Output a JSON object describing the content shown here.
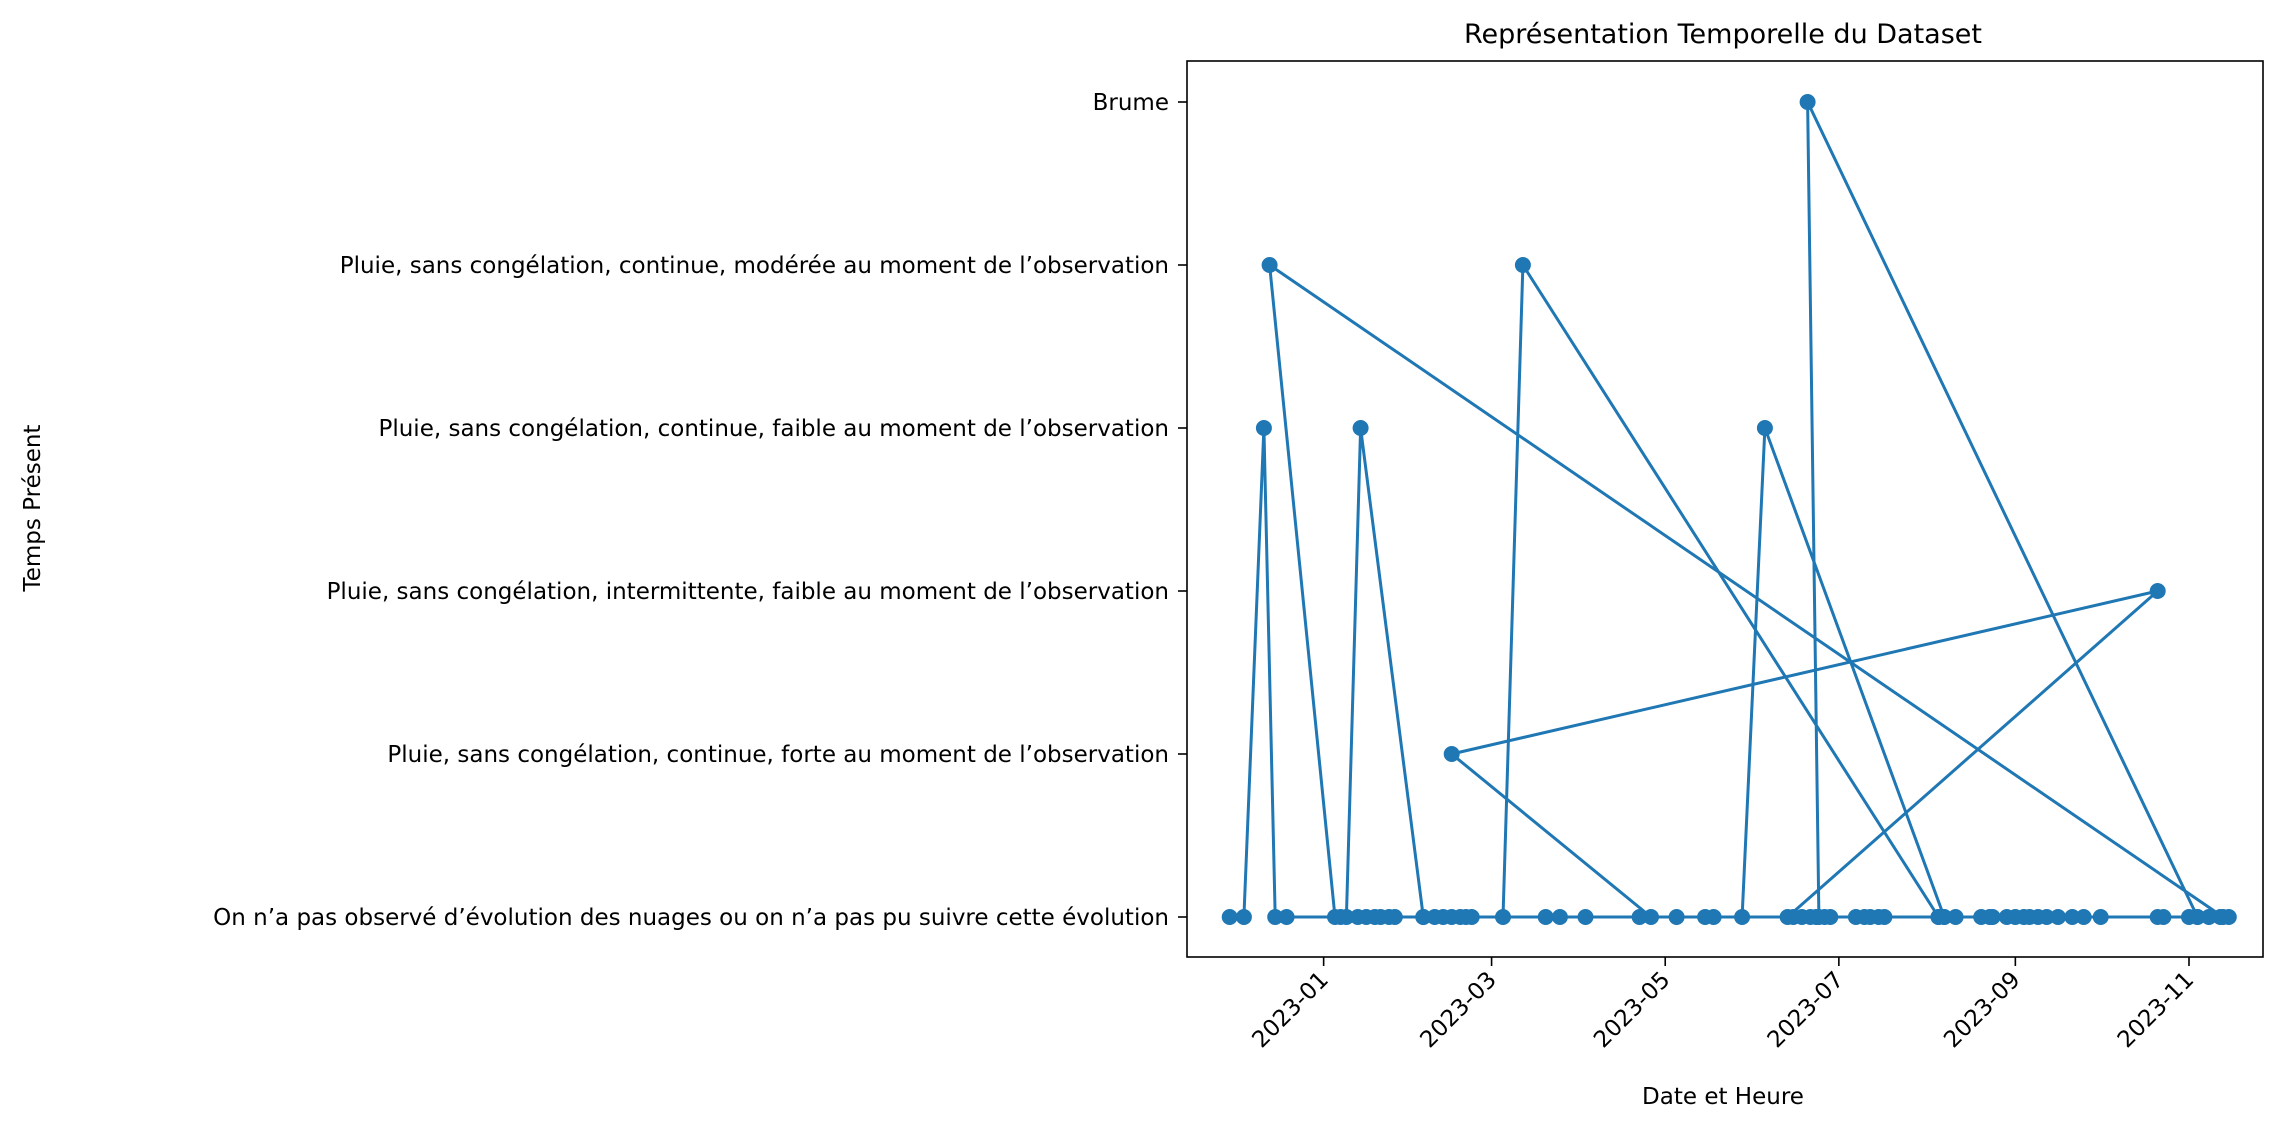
{
  "chart_data": {
    "type": "line",
    "title": "Représentation Temporelle du Dataset",
    "xlabel": "Date et Heure",
    "ylabel": "Temps Présent",
    "x_tick_labels": [
      "2023-01",
      "2023-03",
      "2023-05",
      "2023-07",
      "2023-09",
      "2023-11"
    ],
    "x_ticks": [
      "2023-01-01",
      "2023-03-01",
      "2023-05-01",
      "2023-07-01",
      "2023-09-01",
      "2023-11-01"
    ],
    "xlim": [
      "2022-11-14",
      "2023-11-27"
    ],
    "categories": [
      "On n’a pas observé d’évolution des nuages ou on n’a pas pu suivre cette évolution",
      "Pluie, sans congélation, continue, forte au moment de l’observation",
      "Pluie, sans congélation, intermittente, faible au moment de l’observation",
      "Pluie, sans congélation, continue, faible au moment de l’observation",
      "Pluie, sans congélation, continue, modérée au moment de l’observation",
      "Brume"
    ],
    "grid": false,
    "legend": false,
    "color": "#1f77b4",
    "series": [
      {
        "x": [
          "2022-11-29",
          "2022-12-04",
          "2022-12-11",
          "2022-12-15",
          "2022-12-19",
          "2023-11-13",
          "2022-12-13",
          "2023-01-05",
          "2023-01-09",
          "2023-01-14",
          "2023-02-05",
          "2023-06-23",
          "2023-06-26",
          "2023-01-07",
          "2023-01-13",
          "2023-01-16",
          "2023-01-19",
          "2023-01-21",
          "2023-01-24",
          "2023-08-23",
          "2023-01-26",
          "2023-02-05",
          "2023-02-09",
          "2023-02-12",
          "2023-02-15",
          "2023-02-18",
          "2023-02-20",
          "2023-02-22",
          "2023-03-05",
          "2023-03-12",
          "2023-08-05",
          "2023-03-20",
          "2023-03-25",
          "2023-04-03",
          "2023-04-22",
          "2023-04-26",
          "2023-02-15",
          "2023-10-21",
          "2023-06-13",
          "2023-06-28",
          "2023-05-05",
          "2023-05-15",
          "2023-05-18",
          "2023-05-28",
          "2023-06-05",
          "2023-08-07",
          "2023-06-15",
          "2023-06-18",
          "2023-06-21",
          "2023-06-24",
          "2023-06-20",
          "2023-11-04",
          "2023-07-07",
          "2023-07-10",
          "2023-07-12",
          "2023-07-15",
          "2023-07-17",
          "2023-08-05",
          "2023-08-07",
          "2023-08-11",
          "2023-08-20",
          "2023-08-24",
          "2023-08-29",
          "2023-09-01",
          "2023-09-04",
          "2023-09-06",
          "2023-09-09",
          "2023-09-12",
          "2023-09-16",
          "2023-09-21",
          "2023-09-25",
          "2023-10-01",
          "2023-10-21",
          "2023-10-23",
          "2023-11-01",
          "2023-11-04",
          "2023-11-08",
          "2023-11-12",
          "2023-11-15"
        ],
        "y": [
          "On n’a pas observé d’évolution des nuages ou on n’a pas pu suivre cette évolution",
          "On n’a pas observé d’évolution des nuages ou on n’a pas pu suivre cette évolution",
          "Pluie, sans congélation, continue, faible au moment de l’observation",
          "On n’a pas observé d’évolution des nuages ou on n’a pas pu suivre cette évolution",
          "On n’a pas observé d’évolution des nuages ou on n’a pas pu suivre cette évolution",
          "On n’a pas observé d’évolution des nuages ou on n’a pas pu suivre cette évolution",
          "Pluie, sans congélation, continue, modérée au moment de l’observation",
          "On n’a pas observé d’évolution des nuages ou on n’a pas pu suivre cette évolution",
          "On n’a pas observé d’évolution des nuages ou on n’a pas pu suivre cette évolution",
          "Pluie, sans congélation, continue, faible au moment de l’observation",
          "On n’a pas observé d’évolution des nuages ou on n’a pas pu suivre cette évolution",
          "On n’a pas observé d’évolution des nuages ou on n’a pas pu suivre cette évolution",
          "On n’a pas observé d’évolution des nuages ou on n’a pas pu suivre cette évolution",
          "On n’a pas observé d’évolution des nuages ou on n’a pas pu suivre cette évolution",
          "On n’a pas observé d’évolution des nuages ou on n’a pas pu suivre cette évolution",
          "On n’a pas observé d’évolution des nuages ou on n’a pas pu suivre cette évolution",
          "On n’a pas observé d’évolution des nuages ou on n’a pas pu suivre cette évolution",
          "On n’a pas observé d’évolution des nuages ou on n’a pas pu suivre cette évolution",
          "On n’a pas observé d’évolution des nuages ou on n’a pas pu suivre cette évolution",
          "On n’a pas observé d’évolution des nuages ou on n’a pas pu suivre cette évolution",
          "On n’a pas observé d’évolution des nuages ou on n’a pas pu suivre cette évolution",
          "On n’a pas observé d’évolution des nuages ou on n’a pas pu suivre cette évolution",
          "On n’a pas observé d’évolution des nuages ou on n’a pas pu suivre cette évolution",
          "On n’a pas observé d’évolution des nuages ou on n’a pas pu suivre cette évolution",
          "On n’a pas observé d’évolution des nuages ou on n’a pas pu suivre cette évolution",
          "On n’a pas observé d’évolution des nuages ou on n’a pas pu suivre cette évolution",
          "On n’a pas observé d’évolution des nuages ou on n’a pas pu suivre cette évolution",
          "On n’a pas observé d’évolution des nuages ou on n’a pas pu suivre cette évolution",
          "On n’a pas observé d’évolution des nuages ou on n’a pas pu suivre cette évolution",
          "Pluie, sans congélation, continue, modérée au moment de l’observation",
          "On n’a pas observé d’évolution des nuages ou on n’a pas pu suivre cette évolution",
          "On n’a pas observé d’évolution des nuages ou on n’a pas pu suivre cette évolution",
          "On n’a pas observé d’évolution des nuages ou on n’a pas pu suivre cette évolution",
          "On n’a pas observé d’évolution des nuages ou on n’a pas pu suivre cette évolution",
          "On n’a pas observé d’évolution des nuages ou on n’a pas pu suivre cette évolution",
          "On n’a pas observé d’évolution des nuages ou on n’a pas pu suivre cette évolution",
          "Pluie, sans congélation, continue, forte au moment de l’observation",
          "Pluie, sans congélation, intermittente, faible au moment de l’observation",
          "On n’a pas observé d’évolution des nuages ou on n’a pas pu suivre cette évolution",
          "On n’a pas observé d’évolution des nuages ou on n’a pas pu suivre cette évolution",
          "On n’a pas observé d’évolution des nuages ou on n’a pas pu suivre cette évolution",
          "On n’a pas observé d’évolution des nuages ou on n’a pas pu suivre cette évolution",
          "On n’a pas observé d’évolution des nuages ou on n’a pas pu suivre cette évolution",
          "On n’a pas observé d’évolution des nuages ou on n’a pas pu suivre cette évolution",
          "Pluie, sans congélation, continue, faible au moment de l’observation",
          "On n’a pas observé d’évolution des nuages ou on n’a pas pu suivre cette évolution",
          "On n’a pas observé d’évolution des nuages ou on n’a pas pu suivre cette évolution",
          "On n’a pas observé d’évolution des nuages ou on n’a pas pu suivre cette évolution",
          "On n’a pas observé d’évolution des nuages ou on n’a pas pu suivre cette évolution",
          "On n’a pas observé d’évolution des nuages ou on n’a pas pu suivre cette évolution",
          "Brume",
          "On n’a pas observé d’évolution des nuages ou on n’a pas pu suivre cette évolution",
          "On n’a pas observé d’évolution des nuages ou on n’a pas pu suivre cette évolution",
          "On n’a pas observé d’évolution des nuages ou on n’a pas pu suivre cette évolution",
          "On n’a pas observé d’évolution des nuages ou on n’a pas pu suivre cette évolution",
          "On n’a pas observé d’évolution des nuages ou on n’a pas pu suivre cette évolution",
          "On n’a pas observé d’évolution des nuages ou on n’a pas pu suivre cette évolution",
          "On n’a pas observé d’évolution des nuages ou on n’a pas pu suivre cette évolution",
          "On n’a pas observé d’évolution des nuages ou on n’a pas pu suivre cette évolution",
          "On n’a pas observé d’évolution des nuages ou on n’a pas pu suivre cette évolution",
          "On n’a pas observé d’évolution des nuages ou on n’a pas pu suivre cette évolution",
          "On n’a pas observé d’évolution des nuages ou on n’a pas pu suivre cette évolution",
          "On n’a pas observé d’évolution des nuages ou on n’a pas pu suivre cette évolution",
          "On n’a pas observé d’évolution des nuages ou on n’a pas pu suivre cette évolution",
          "On n’a pas observé d’évolution des nuages ou on n’a pas pu suivre cette évolution",
          "On n’a pas observé d’évolution des nuages ou on n’a pas pu suivre cette évolution",
          "On n’a pas observé d’évolution des nuages ou on n’a pas pu suivre cette évolution",
          "On n’a pas observé d’évolution des nuages ou on n’a pas pu suivre cette évolution",
          "On n’a pas observé d’évolution des nuages ou on n’a pas pu suivre cette évolution",
          "On n’a pas observé d’évolution des nuages ou on n’a pas pu suivre cette évolution",
          "On n’a pas observé d’évolution des nuages ou on n’a pas pu suivre cette évolution",
          "On n’a pas observé d’évolution des nuages ou on n’a pas pu suivre cette évolution",
          "On n’a pas observé d’évolution des nuages ou on n’a pas pu suivre cette évolution",
          "On n’a pas observé d’évolution des nuages ou on n’a pas pu suivre cette évolution",
          "On n’a pas observé d’évolution des nuages ou on n’a pas pu suivre cette évolution",
          "On n’a pas observé d’évolution des nuages ou on n’a pas pu suivre cette évolution",
          "On n’a pas observé d’évolution des nuages ou on n’a pas pu suivre cette évolution",
          "On n’a pas observé d’évolution des nuages ou on n’a pas pu suivre cette évolution",
          "On n’a pas observé d’évolution des nuages ou on n’a pas pu suivre cette évolution"
        ]
      }
    ]
  }
}
